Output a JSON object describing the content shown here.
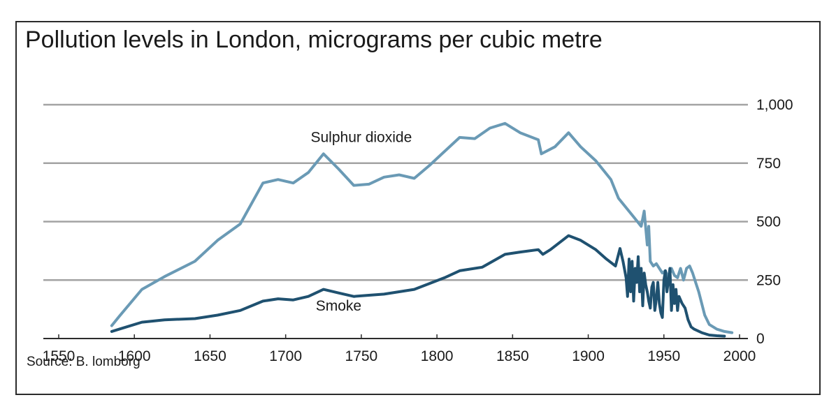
{
  "chart_data": {
    "type": "line",
    "title": "Pollution levels in London, micrograms per cubic metre",
    "source": "Source: B. lomborg",
    "xlabel": "",
    "ylabel": "",
    "xlim": [
      1545,
      2005
    ],
    "ylim": [
      0,
      1000
    ],
    "x_ticks": [
      1550,
      1600,
      1650,
      1700,
      1750,
      1800,
      1850,
      1900,
      1950,
      2000
    ],
    "y_ticks": [
      0,
      250,
      500,
      750,
      1000
    ],
    "y_tick_labels": [
      "0",
      "250",
      "500",
      "750",
      "1,000"
    ],
    "grid": "horizontal",
    "y_axis_position": "right",
    "series": [
      {
        "name": "Sulphur dioxide",
        "color": "#6a9ab5",
        "x": [
          1585,
          1590,
          1605,
          1620,
          1640,
          1655,
          1670,
          1685,
          1695,
          1705,
          1715,
          1725,
          1735,
          1745,
          1755,
          1765,
          1775,
          1785,
          1795,
          1805,
          1815,
          1825,
          1835,
          1845,
          1855,
          1867,
          1869,
          1878,
          1887,
          1895,
          1905,
          1915,
          1920,
          1930,
          1935,
          1937,
          1939,
          1940,
          1941,
          1943,
          1945,
          1947,
          1949,
          1951,
          1953,
          1955,
          1957,
          1959,
          1961,
          1963,
          1965,
          1967,
          1969,
          1971,
          1973,
          1975,
          1977,
          1980,
          1985,
          1990,
          1995
        ],
        "y": [
          55,
          95,
          210,
          265,
          330,
          420,
          490,
          665,
          680,
          665,
          710,
          790,
          725,
          655,
          660,
          690,
          700,
          685,
          740,
          800,
          860,
          855,
          900,
          920,
          880,
          850,
          790,
          820,
          880,
          820,
          760,
          680,
          600,
          520,
          480,
          545,
          400,
          480,
          330,
          310,
          320,
          300,
          280,
          290,
          260,
          300,
          270,
          260,
          300,
          250,
          300,
          310,
          280,
          240,
          200,
          150,
          100,
          60,
          40,
          30,
          25
        ]
      },
      {
        "name": "Smoke",
        "color": "#1f5170",
        "x": [
          1585,
          1590,
          1605,
          1620,
          1640,
          1655,
          1670,
          1685,
          1695,
          1705,
          1715,
          1725,
          1735,
          1745,
          1755,
          1765,
          1775,
          1785,
          1795,
          1805,
          1815,
          1830,
          1845,
          1855,
          1867,
          1870,
          1875,
          1887,
          1895,
          1905,
          1912,
          1918,
          1921,
          1923,
          1925,
          1926,
          1927,
          1928,
          1929,
          1930,
          1931,
          1932,
          1933,
          1934,
          1935,
          1936,
          1937,
          1938,
          1939,
          1940,
          1941,
          1942,
          1943,
          1944,
          1945,
          1946,
          1947,
          1948,
          1949,
          1950,
          1951,
          1952,
          1953,
          1954,
          1955,
          1956,
          1957,
          1958,
          1959,
          1960,
          1962,
          1964,
          1966,
          1968,
          1970,
          1975,
          1980,
          1985,
          1990
        ],
        "y": [
          30,
          40,
          70,
          80,
          85,
          100,
          120,
          160,
          170,
          165,
          180,
          210,
          195,
          180,
          185,
          190,
          200,
          210,
          235,
          260,
          290,
          305,
          360,
          370,
          380,
          360,
          380,
          440,
          420,
          380,
          340,
          310,
          385,
          330,
          260,
          180,
          340,
          200,
          330,
          160,
          300,
          240,
          350,
          200,
          300,
          140,
          280,
          230,
          200,
          160,
          130,
          220,
          240,
          120,
          170,
          240,
          150,
          110,
          90,
          250,
          290,
          200,
          250,
          300,
          120,
          230,
          150,
          210,
          120,
          180,
          150,
          130,
          80,
          50,
          40,
          25,
          15,
          12,
          10
        ]
      }
    ],
    "annotations": [
      {
        "text": "Sulphur dioxide",
        "x": 1750,
        "y": 840
      },
      {
        "text": "Smoke",
        "x": 1735,
        "y": 120
      }
    ]
  }
}
